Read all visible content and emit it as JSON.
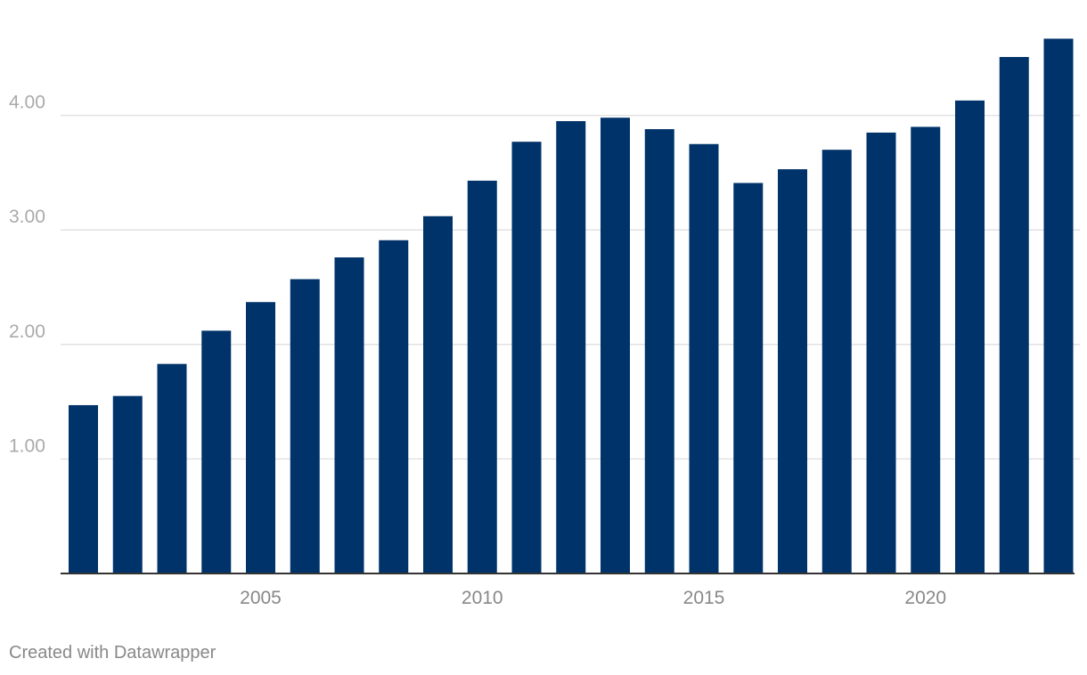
{
  "chart_data": {
    "type": "bar",
    "categories": [
      "2001",
      "2002",
      "2003",
      "2004",
      "2005",
      "2006",
      "2007",
      "2008",
      "2009",
      "2010",
      "2011",
      "2012",
      "2013",
      "2014",
      "2015",
      "2016",
      "2017",
      "2018",
      "2019",
      "2020",
      "2021",
      "2022",
      "2023"
    ],
    "values": [
      1.47,
      1.55,
      1.83,
      2.12,
      2.37,
      2.57,
      2.76,
      2.91,
      3.12,
      3.43,
      3.77,
      3.95,
      3.98,
      3.88,
      3.75,
      3.41,
      3.53,
      3.7,
      3.85,
      3.9,
      4.13,
      4.51,
      4.67
    ],
    "x_ticks": [
      "2005",
      "2010",
      "2015",
      "2020"
    ],
    "y_ticks": [
      "1.00",
      "2.00",
      "3.00",
      "4.00"
    ],
    "y_tick_values": [
      1,
      2,
      3,
      4
    ],
    "ylim": [
      0,
      4.7
    ],
    "title": "",
    "xlabel": "",
    "ylabel": "",
    "grid": true,
    "bar_color": "#00336a"
  },
  "footer": {
    "credit": "Created with Datawrapper"
  }
}
